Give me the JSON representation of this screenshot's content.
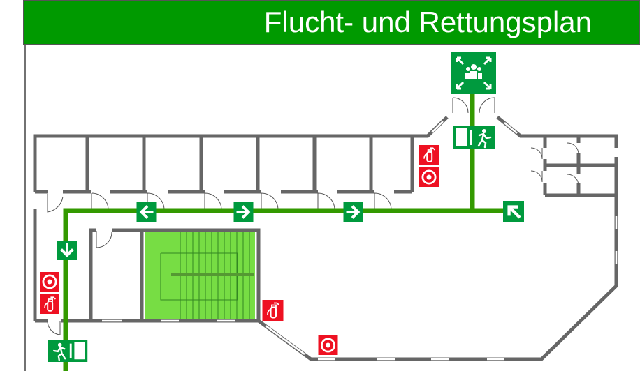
{
  "title": "Flucht- und Rettungsplan",
  "colors": {
    "header_green": "#009a00",
    "route_green": "#339900",
    "stair_green": "#77dd44",
    "sign_green": "#009a3e",
    "fire_red": "#ee1122",
    "wall_gray": "#666666"
  },
  "signs": {
    "assembly_point": "assembly-point-icon",
    "emergency_exit": "emergency-exit-icon",
    "fire_extinguisher": "fire-extinguisher-icon",
    "fire_alarm": "fire-alarm-icon",
    "direction_arrows": [
      "arrow-left-icon",
      "arrow-right-icon",
      "arrow-right-icon",
      "arrow-up-left-icon",
      "arrow-down-icon"
    ]
  }
}
